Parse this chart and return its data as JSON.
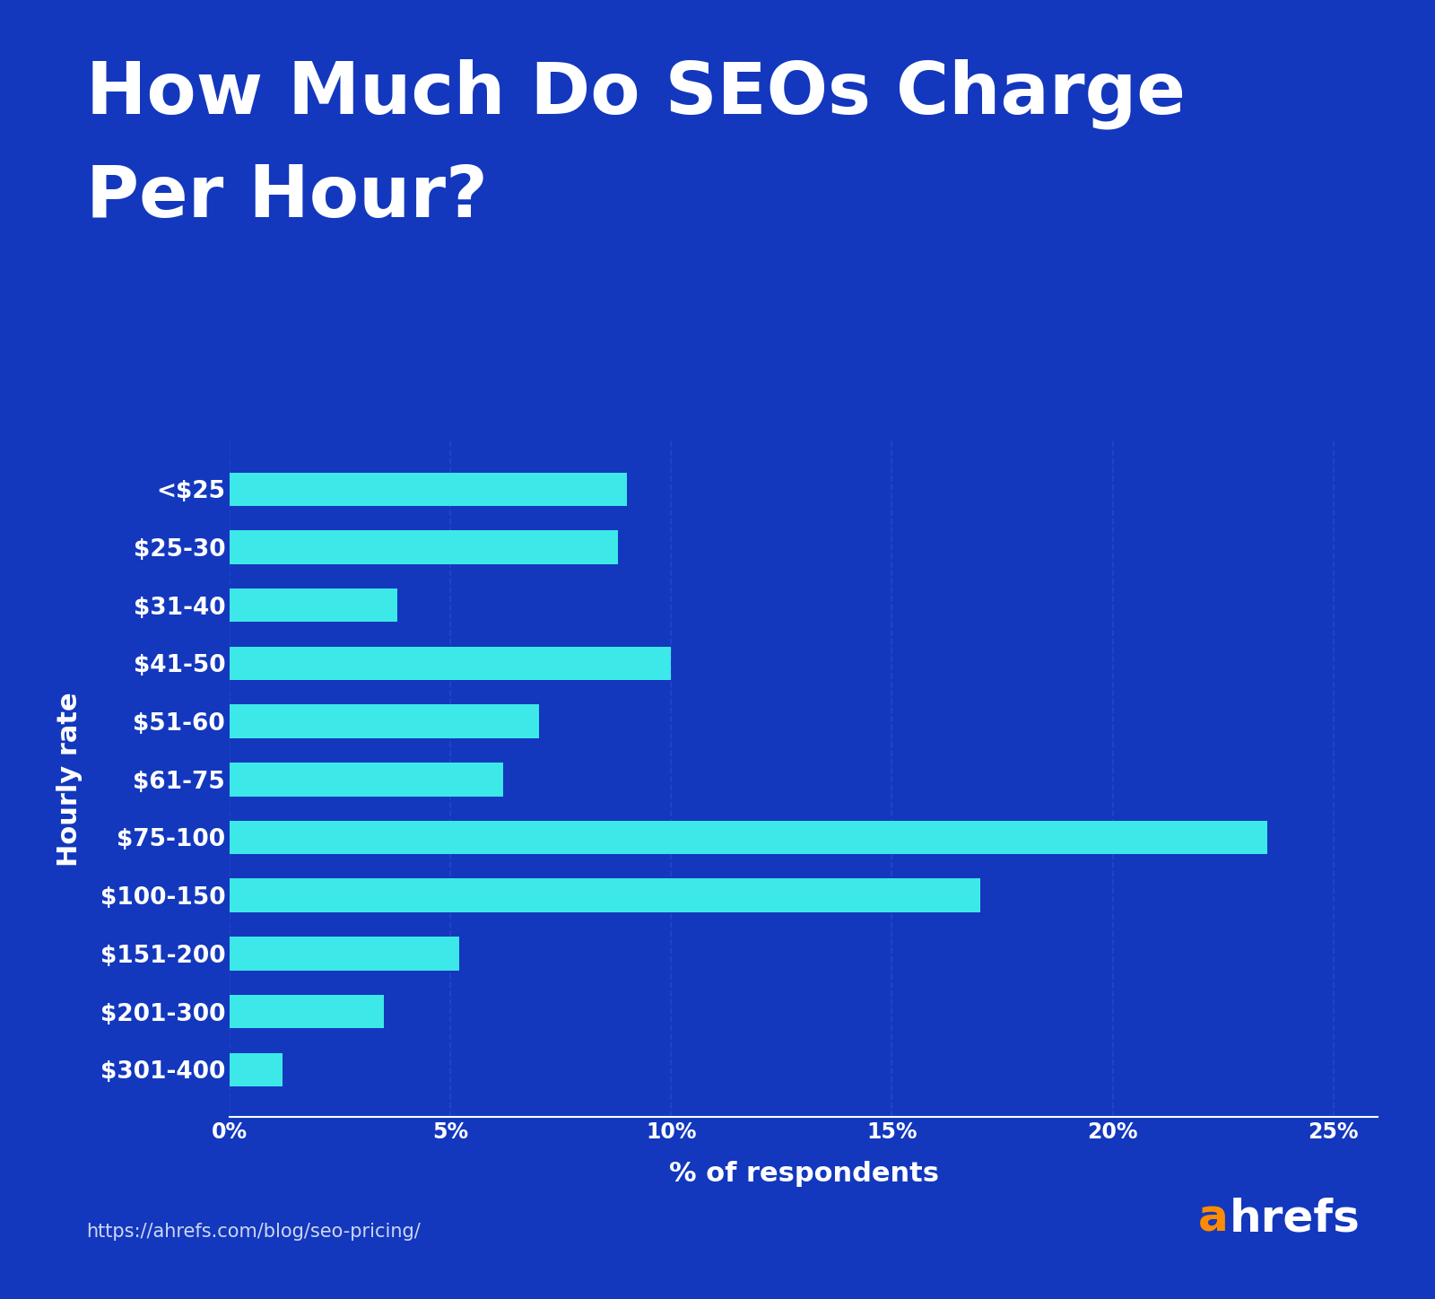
{
  "title_line1": "How Much Do SEOs Charge",
  "title_line2": "Per Hour?",
  "categories": [
    "<$25",
    "$25-30",
    "$31-40",
    "$41-50",
    "$51-60",
    "$61-75",
    "$75-100",
    "$100-150",
    "$151-200",
    "$201-300",
    "$301-400"
  ],
  "values": [
    9.0,
    8.8,
    3.8,
    10.0,
    7.0,
    6.2,
    23.5,
    17.0,
    5.2,
    3.5,
    1.2
  ],
  "bar_color": "#3DE8E8",
  "background_color": "#1338BE",
  "text_color": "#ffffff",
  "xlabel": "% of respondents",
  "ylabel": "Hourly rate",
  "xlim": [
    0,
    26
  ],
  "xticks": [
    0,
    5,
    10,
    15,
    20,
    25
  ],
  "xtick_labels": [
    "0%",
    "5%",
    "10%",
    "15%",
    "20%",
    "25%"
  ],
  "grid_color": "#2244CC",
  "url_text": "https://ahrefs.com/blog/seo-pricing/",
  "brand_a_color": "#FF8C00",
  "brand_hrefs_color": "#ffffff",
  "title_fontsize": 58,
  "label_fontsize": 19,
  "tick_fontsize": 17,
  "url_fontsize": 15,
  "bar_height": 0.58
}
